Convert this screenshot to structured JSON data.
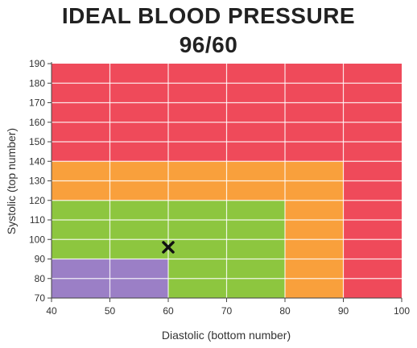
{
  "chart_data": {
    "type": "heatmap",
    "title": "IDEAL BLOOD PRESSURE",
    "subtitle": "96/60",
    "xlabel": "Diastolic (bottom number)",
    "ylabel": "Systolic (top number)",
    "xlim": [
      40,
      100
    ],
    "ylim": [
      70,
      190
    ],
    "x_ticks": [
      40,
      50,
      60,
      70,
      80,
      90,
      100
    ],
    "y_ticks": [
      70,
      80,
      90,
      100,
      110,
      120,
      130,
      140,
      150,
      160,
      170,
      180,
      190
    ],
    "grid": true,
    "zones": [
      {
        "color": "#ef4a5a",
        "x0": 40,
        "x1": 100,
        "y0": 70,
        "y1": 190
      },
      {
        "color": "#f9a03c",
        "x0": 40,
        "x1": 90,
        "y0": 70,
        "y1": 140
      },
      {
        "color": "#8dc63f",
        "x0": 40,
        "x1": 80,
        "y0": 70,
        "y1": 120
      },
      {
        "color": "#9b7fc6",
        "x0": 40,
        "x1": 60,
        "y0": 70,
        "y1": 90
      }
    ],
    "marker": {
      "symbol": "x",
      "x": 60,
      "y": 96,
      "color": "#111111"
    }
  }
}
